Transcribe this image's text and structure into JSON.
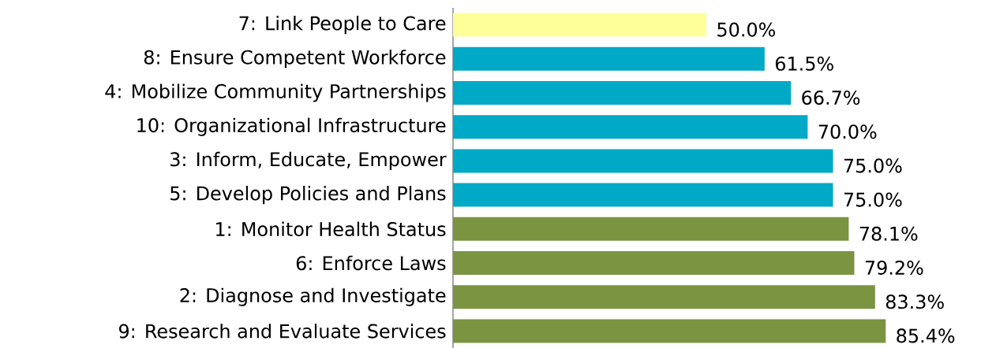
{
  "chart_data": {
    "type": "bar",
    "orientation": "horizontal",
    "categories": [
      "7: Link People to Care",
      "8: Ensure Competent Workforce",
      "4: Mobilize Community Partnerships",
      "10: Organizational Infrastructure",
      "3: Inform, Educate, Empower",
      "5: Develop Policies and Plans",
      "1: Monitor Health Status",
      "6: Enforce Laws",
      "2: Diagnose and Investigate",
      "9: Research and Evaluate Services"
    ],
    "values": [
      50.0,
      61.5,
      66.7,
      70.0,
      75.0,
      75.0,
      78.1,
      79.2,
      83.3,
      85.4
    ],
    "value_labels": [
      "50.0%",
      "61.5%",
      "66.7%",
      "70.0%",
      "75.0%",
      "75.0%",
      "78.1%",
      "79.2%",
      "83.3%",
      "85.4%"
    ],
    "colors": [
      "#ffff99",
      "#00a9c6",
      "#00a9c6",
      "#00a9c6",
      "#00a9c6",
      "#00a9c6",
      "#7a9442",
      "#7a9442",
      "#7a9442",
      "#7a9442"
    ],
    "tick_labels": "y"
  }
}
